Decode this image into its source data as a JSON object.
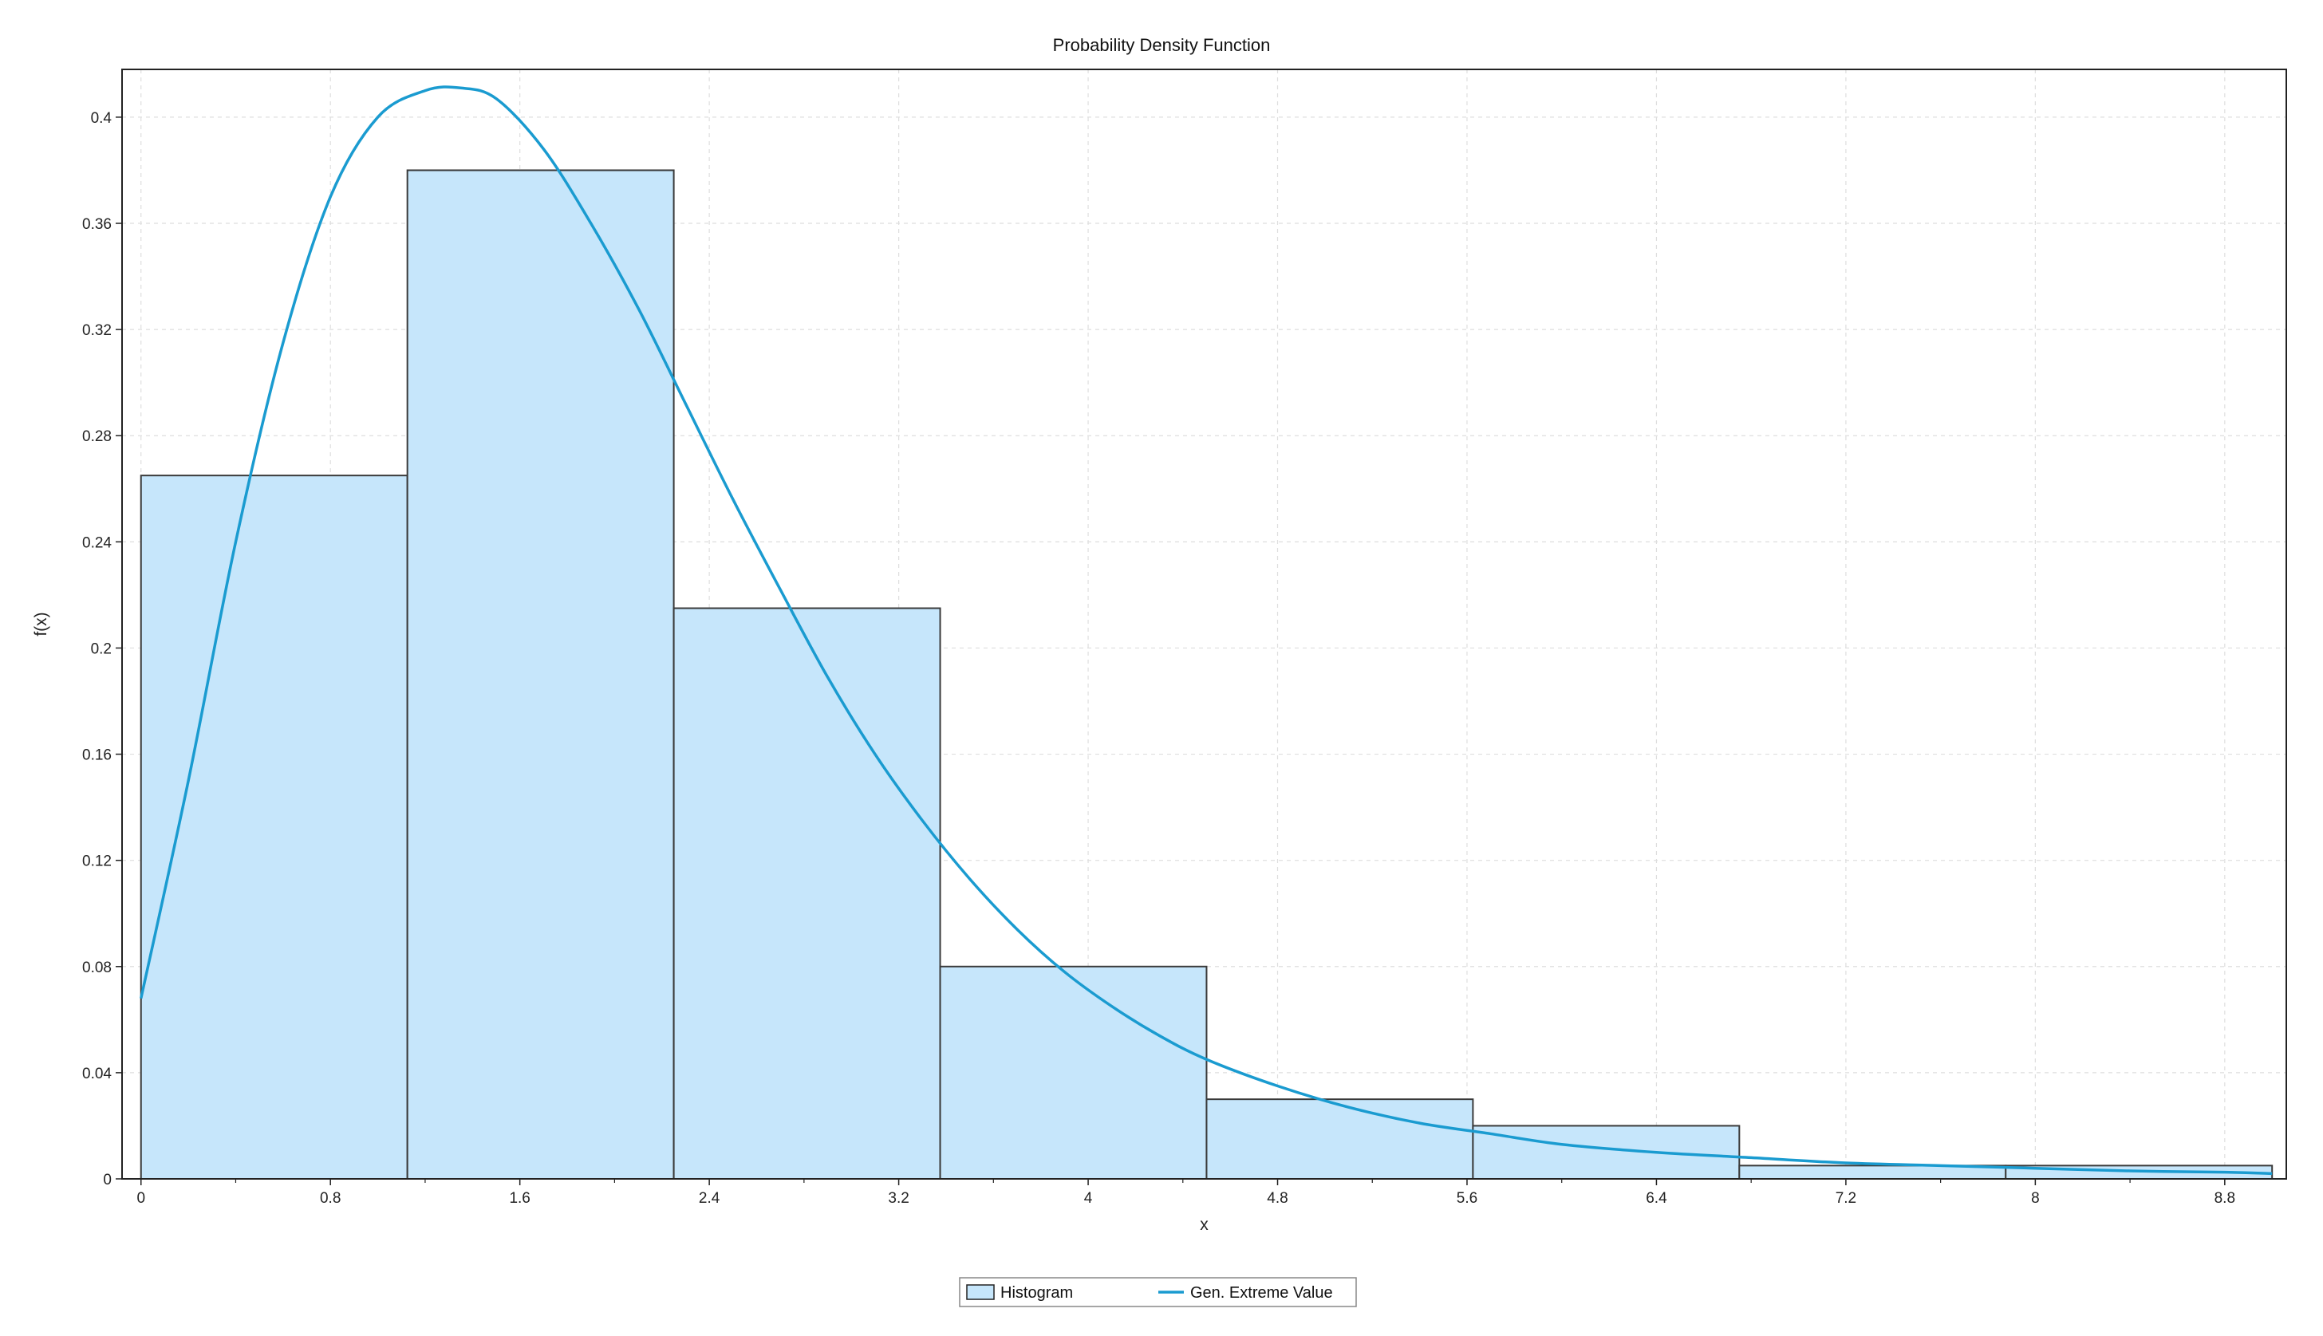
{
  "chart_data": {
    "type": "bar",
    "title": "Probability Density Function",
    "xlabel": "x",
    "ylabel": "f(x)",
    "xlim": [
      -0.08,
      9.06
    ],
    "ylim": [
      0,
      0.418
    ],
    "xticks": [
      "0",
      "0.8",
      "1.6",
      "2.4",
      "3.2",
      "4",
      "4.8",
      "5.6",
      "6.4",
      "7.2",
      "8",
      "8.8"
    ],
    "yticks": [
      "0",
      "0.04",
      "0.08",
      "0.12",
      "0.16",
      "0.2",
      "0.24",
      "0.28",
      "0.32",
      "0.36",
      "0.4"
    ],
    "grid": true,
    "legend_position": "bottom-center",
    "colors": {
      "bar_fill": "#c6e6fb",
      "bar_stroke": "#3a3a3a",
      "curve": "#1a9bd0"
    },
    "series": [
      {
        "name": "Histogram",
        "type": "bar",
        "bins": [
          {
            "x0": 0.0,
            "x1": 1.125,
            "value": 0.265
          },
          {
            "x0": 1.125,
            "x1": 2.25,
            "value": 0.38
          },
          {
            "x0": 2.25,
            "x1": 3.375,
            "value": 0.215
          },
          {
            "x0": 3.375,
            "x1": 4.5,
            "value": 0.08
          },
          {
            "x0": 4.5,
            "x1": 5.625,
            "value": 0.03
          },
          {
            "x0": 5.625,
            "x1": 6.75,
            "value": 0.02
          },
          {
            "x0": 6.75,
            "x1": 7.875,
            "value": 0.005
          },
          {
            "x0": 7.875,
            "x1": 9.0,
            "value": 0.005
          }
        ]
      },
      {
        "name": "Gen. Extreme Value",
        "type": "line",
        "x": [
          0,
          0.2,
          0.4,
          0.6,
          0.8,
          1.0,
          1.2,
          1.35,
          1.5,
          1.7,
          1.9,
          2.1,
          2.3,
          2.5,
          2.7,
          2.9,
          3.1,
          3.3,
          3.5,
          3.7,
          3.9,
          4.1,
          4.3,
          4.5,
          4.8,
          5.1,
          5.4,
          5.7,
          6.0,
          6.4,
          6.8,
          7.2,
          7.6,
          8.0,
          8.4,
          8.8,
          9.0
        ],
        "y": [
          0.068,
          0.15,
          0.24,
          0.315,
          0.37,
          0.4,
          0.41,
          0.411,
          0.407,
          0.388,
          0.36,
          0.328,
          0.292,
          0.256,
          0.222,
          0.189,
          0.16,
          0.135,
          0.113,
          0.094,
          0.078,
          0.065,
          0.054,
          0.045,
          0.035,
          0.027,
          0.021,
          0.017,
          0.013,
          0.01,
          0.008,
          0.006,
          0.005,
          0.004,
          0.003,
          0.0025,
          0.002
        ]
      }
    ]
  }
}
